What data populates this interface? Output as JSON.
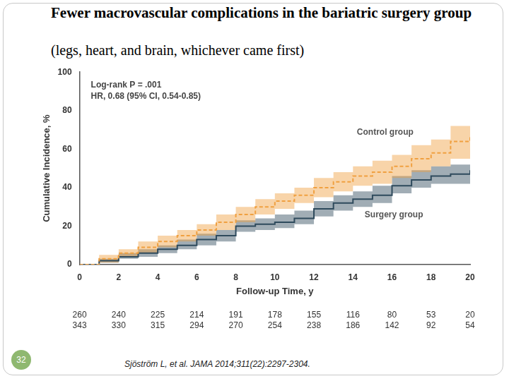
{
  "chart_data": {
    "type": "line",
    "title": "Fewer macrovascular complications in the bariatric surgery group",
    "subtitle": "(legs, heart, and brain, whichever came first)",
    "x_label": "Follow-up Time, y",
    "y_label": "Cumulative Incidence, %",
    "annotations": [
      "Log-rank P = .001",
      "HR, 0.68 (95% CI, 0.54-0.85)"
    ],
    "x": [
      0,
      1,
      2,
      3,
      4,
      5,
      6,
      7,
      8,
      9,
      10,
      11,
      12,
      13,
      14,
      15,
      16,
      17,
      18,
      19,
      20
    ],
    "series": [
      {
        "name": "Control group",
        "color": "#f0a040",
        "line_style": "dashed",
        "values": [
          0,
          3,
          6,
          9,
          12,
          15,
          18,
          22,
          26,
          30,
          33,
          36,
          40,
          43,
          46,
          48,
          51,
          55,
          58,
          64,
          67
        ],
        "ci_lower": [
          0,
          1,
          4,
          6,
          9,
          12,
          15,
          18,
          22,
          26,
          29,
          32,
          35,
          38,
          41,
          42,
          45,
          48,
          51,
          55,
          58
        ],
        "ci_upper": [
          0,
          5,
          8,
          12,
          15,
          18,
          21,
          26,
          30,
          34,
          37,
          40,
          45,
          48,
          51,
          54,
          57,
          62,
          65,
          72,
          75
        ]
      },
      {
        "name": "Surgery group",
        "color": "#2e4a5c",
        "line_style": "solid",
        "values": [
          0,
          2,
          4,
          6,
          8,
          10,
          13,
          15,
          20,
          21,
          22,
          24,
          29,
          32,
          34,
          36,
          41,
          44,
          46,
          47,
          49
        ],
        "ci_lower": [
          0,
          1,
          3,
          4,
          6,
          8,
          10,
          12,
          17,
          18,
          19,
          21,
          25,
          28,
          30,
          32,
          37,
          40,
          42,
          42,
          43
        ],
        "ci_upper": [
          0,
          3,
          6,
          8,
          10,
          13,
          16,
          18,
          23,
          24,
          26,
          28,
          33,
          36,
          38,
          41,
          46,
          49,
          51,
          52,
          55
        ]
      }
    ],
    "xlim": [
      0,
      20
    ],
    "xticks": [
      0,
      2,
      4,
      6,
      8,
      10,
      12,
      14,
      16,
      18,
      20
    ],
    "ylim": [
      0,
      100
    ],
    "yticks": [
      0,
      20,
      40,
      60,
      80,
      100
    ],
    "grid": false,
    "number_at_risk": {
      "x": [
        0,
        2,
        4,
        6,
        8,
        10,
        12,
        14,
        16,
        18,
        20
      ],
      "rows": [
        [
          260,
          240,
          225,
          214,
          191,
          178,
          155,
          116,
          80,
          53,
          20
        ],
        [
          343,
          330,
          315,
          294,
          270,
          254,
          238,
          186,
          142,
          92,
          54
        ]
      ]
    },
    "page_number": 32,
    "source": "Sjöström L, et al. JAMA 2014;311(22):2297-2304."
  }
}
